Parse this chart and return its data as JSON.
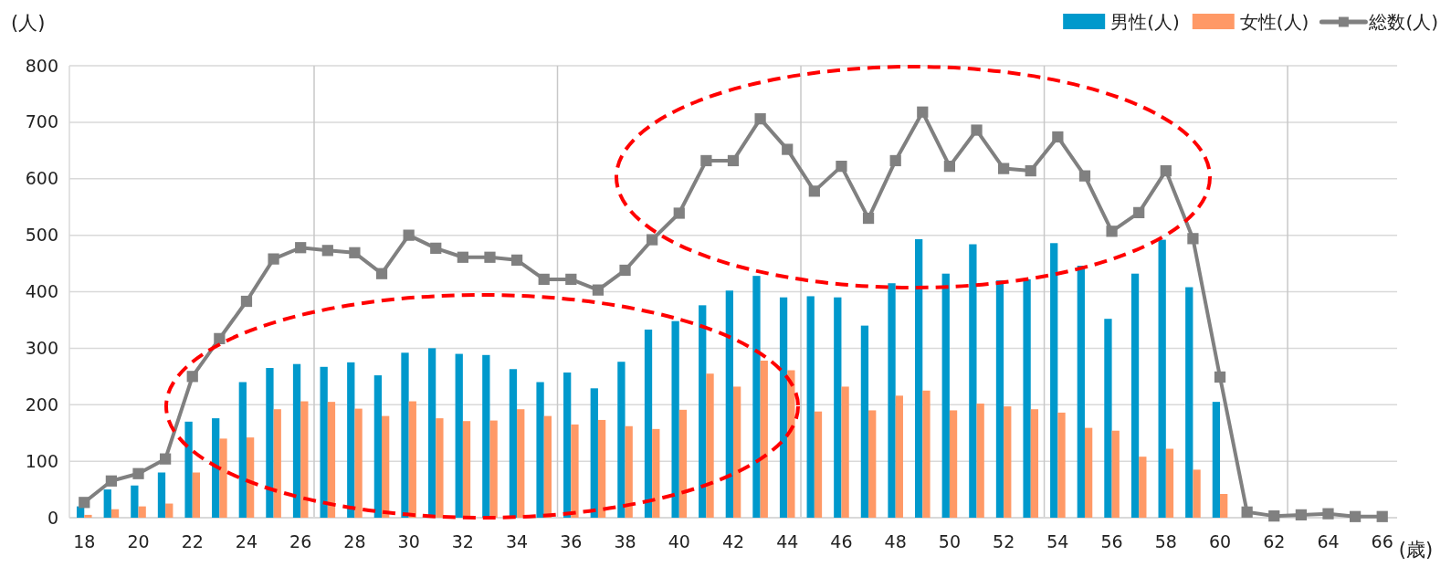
{
  "chart_data": {
    "type": "bar",
    "ylabel": "(人)",
    "xlabel": "(歳)",
    "categories": [
      "18",
      null,
      "20",
      null,
      "22",
      null,
      "24",
      null,
      "26",
      null,
      "28",
      null,
      "30",
      null,
      "32",
      null,
      "34",
      null,
      "36",
      null,
      "38",
      null,
      "40",
      null,
      "42",
      null,
      "44",
      null,
      "46",
      null,
      "48",
      null,
      "50",
      null,
      "52",
      null,
      "54",
      null,
      "56",
      null,
      "58",
      null,
      "60",
      null,
      "62",
      null,
      "64",
      null,
      "66"
    ],
    "series": [
      {
        "name": "男性(人)",
        "color": "#0099cc",
        "values": [
          20,
          50,
          57,
          80,
          170,
          176,
          240,
          265,
          272,
          267,
          275,
          252,
          292,
          300,
          290,
          288,
          263,
          240,
          257,
          229,
          276,
          333,
          348,
          376,
          402,
          428,
          390,
          392,
          390,
          340,
          415,
          493,
          432,
          484,
          420,
          422,
          486,
          446,
          352,
          432,
          492,
          408,
          205,
          null,
          0,
          0,
          0,
          0,
          0
        ]
      },
      {
        "name": "女性(人)",
        "color": "#ff9966",
        "values": [
          5,
          15,
          20,
          25,
          80,
          140,
          142,
          192,
          206,
          205,
          193,
          180,
          206,
          176,
          171,
          172,
          192,
          180,
          165,
          173,
          162,
          157,
          191,
          255,
          232,
          278,
          261,
          188,
          232,
          190,
          216,
          225,
          190,
          202,
          197,
          192,
          186,
          159,
          154,
          108,
          122,
          85,
          42,
          0,
          0,
          0,
          0,
          0,
          0
        ]
      },
      {
        "name": "総数(人)",
        "type": "line",
        "color": "#808080",
        "marker": "square",
        "values": [
          27,
          65,
          78,
          104,
          250,
          317,
          383,
          458,
          478,
          473,
          469,
          432,
          500,
          477,
          461,
          461,
          456,
          422,
          422,
          403,
          438,
          492,
          539,
          632,
          632,
          706,
          652,
          578,
          622,
          530,
          632,
          718,
          622,
          686,
          618,
          614,
          674,
          605,
          507,
          540,
          614,
          494,
          249,
          10,
          3,
          5,
          7,
          2,
          2
        ]
      }
    ],
    "ylim": [
      0,
      800
    ],
    "yticks": [
      0,
      100,
      200,
      300,
      400,
      500,
      600,
      700,
      800
    ],
    "grid": true,
    "legend": "top right"
  }
}
